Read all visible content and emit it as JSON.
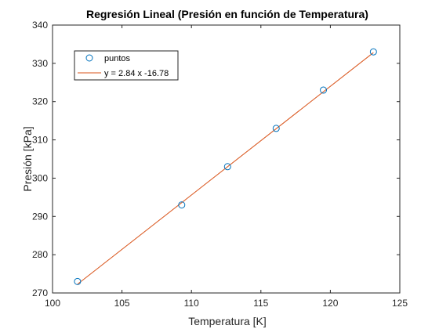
{
  "chart_data": {
    "type": "scatter",
    "title": "Regresión Lineal (Presión en función de Temperatura)",
    "xlabel": "Temperatura [K]",
    "ylabel": "Presión [kPa]",
    "xlim": [
      100,
      125
    ],
    "ylim": [
      270,
      340
    ],
    "xticks": [
      100,
      105,
      110,
      115,
      120,
      125
    ],
    "yticks": [
      270,
      280,
      290,
      300,
      310,
      320,
      330,
      340
    ],
    "grid": false,
    "legend_position": "top-left",
    "series": [
      {
        "name": "puntos",
        "kind": "markers",
        "marker": "circle",
        "color": "#0072BD",
        "x": [
          101.8,
          109.3,
          112.6,
          116.1,
          119.5,
          123.1
        ],
        "y": [
          273,
          293,
          303,
          313,
          323,
          333
        ]
      },
      {
        "name": "y = 2.84 x -16.78",
        "kind": "line",
        "color": "#D95319",
        "x": [
          101.8,
          123.1
        ],
        "y": [
          272.3,
          332.8
        ]
      }
    ]
  }
}
